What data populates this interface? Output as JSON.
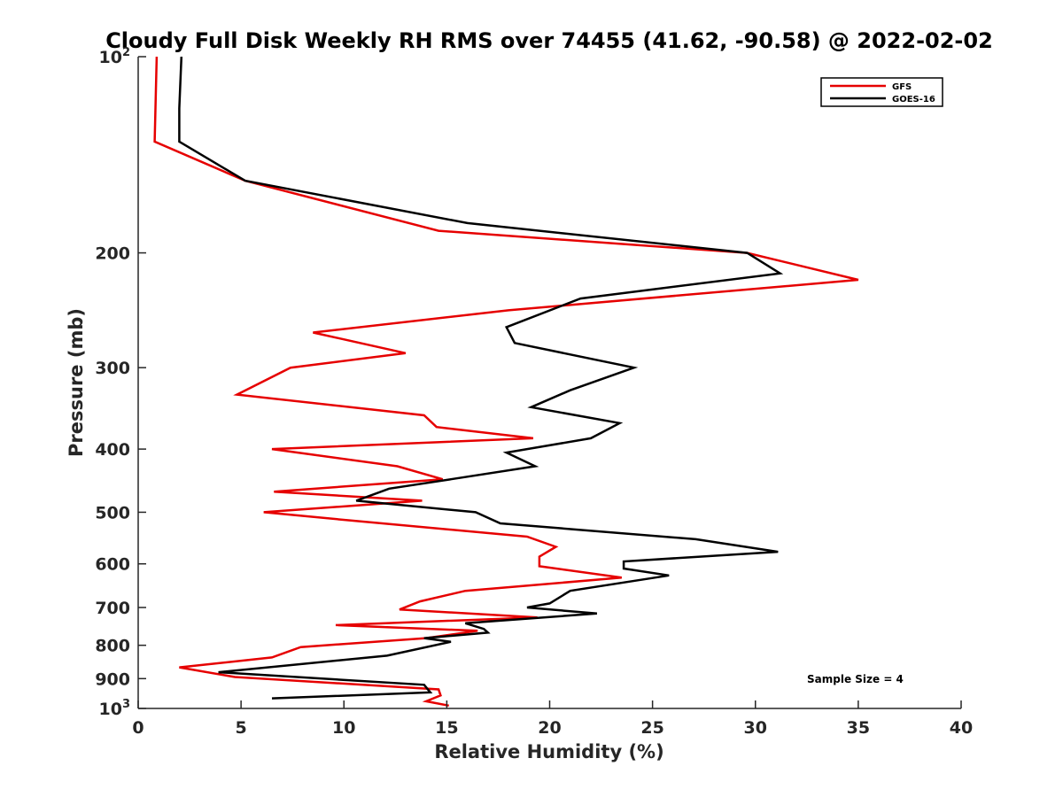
{
  "chart_data": {
    "type": "line",
    "title": "Cloudy Full Disk Weekly RH RMS over 74455 (41.62, -90.58) @ 2022-02-02",
    "xlabel": "Relative Humidity (%)",
    "ylabel": "Pressure (mb)",
    "xlim": [
      0,
      40
    ],
    "ylim": [
      100,
      1000
    ],
    "y_scale": "log",
    "y_reversed": true,
    "x_ticks": [
      "0",
      "5",
      "10",
      "15",
      "20",
      "25",
      "30",
      "35",
      "40"
    ],
    "y_ticks": [
      {
        "value": 100,
        "base": "10",
        "exp": "2"
      },
      {
        "value": 200,
        "label": "200"
      },
      {
        "value": 300,
        "label": "300"
      },
      {
        "value": 400,
        "label": "400"
      },
      {
        "value": 500,
        "label": "500"
      },
      {
        "value": 600,
        "label": "600"
      },
      {
        "value": 700,
        "label": "700"
      },
      {
        "value": 800,
        "label": "800"
      },
      {
        "value": 900,
        "label": "900"
      },
      {
        "value": 1000,
        "base": "10",
        "exp": "3"
      }
    ],
    "grid": false,
    "legend_position": "top-right",
    "annotation": "Sample Size = 4",
    "series": [
      {
        "name": "GFS",
        "color": "#e60000",
        "x": [
          0.9,
          0.8,
          5.2,
          14.6,
          29.6,
          35.0,
          18.0,
          8.5,
          13.0,
          7.4,
          4.8,
          13.9,
          14.5,
          19.2,
          6.5,
          12.6,
          14.8,
          6.6,
          13.8,
          6.1,
          10.4,
          18.9,
          20.3,
          19.5,
          19.5,
          23.5,
          15.9,
          13.7,
          12.7,
          19.4,
          9.6,
          16.5,
          14.0,
          7.9,
          6.5,
          2.0,
          4.7,
          14.6,
          14.7,
          14.0,
          15.1
        ],
        "y": [
          100,
          135,
          155,
          185,
          200,
          220,
          245,
          265,
          285,
          300,
          330,
          355,
          370,
          385,
          400,
          425,
          445,
          465,
          480,
          500,
          515,
          545,
          565,
          585,
          605,
          630,
          660,
          685,
          705,
          725,
          745,
          760,
          780,
          805,
          835,
          865,
          895,
          935,
          955,
          975,
          990
        ]
      },
      {
        "name": "GOES-16",
        "color": "#000000",
        "x": [
          2.1,
          2.0,
          2.0,
          5.2,
          16.0,
          29.6,
          31.2,
          21.5,
          17.9,
          18.3,
          24.1,
          21.0,
          19.1,
          23.4,
          22.0,
          17.9,
          19.3,
          15.2,
          12.2,
          10.6,
          16.4,
          17.6,
          27.1,
          31.1,
          23.6,
          23.6,
          25.8,
          21.0,
          20.0,
          18.9,
          22.3,
          15.9,
          16.8,
          17.0,
          13.9,
          15.2,
          12.1,
          3.9,
          13.9,
          14.2,
          6.5
        ],
        "y": [
          100,
          120,
          135,
          155,
          180,
          200,
          215,
          235,
          260,
          275,
          300,
          325,
          345,
          365,
          385,
          405,
          425,
          445,
          460,
          480,
          500,
          520,
          550,
          575,
          595,
          610,
          625,
          660,
          690,
          700,
          715,
          740,
          755,
          765,
          780,
          790,
          830,
          880,
          920,
          945,
          965
        ]
      }
    ]
  }
}
